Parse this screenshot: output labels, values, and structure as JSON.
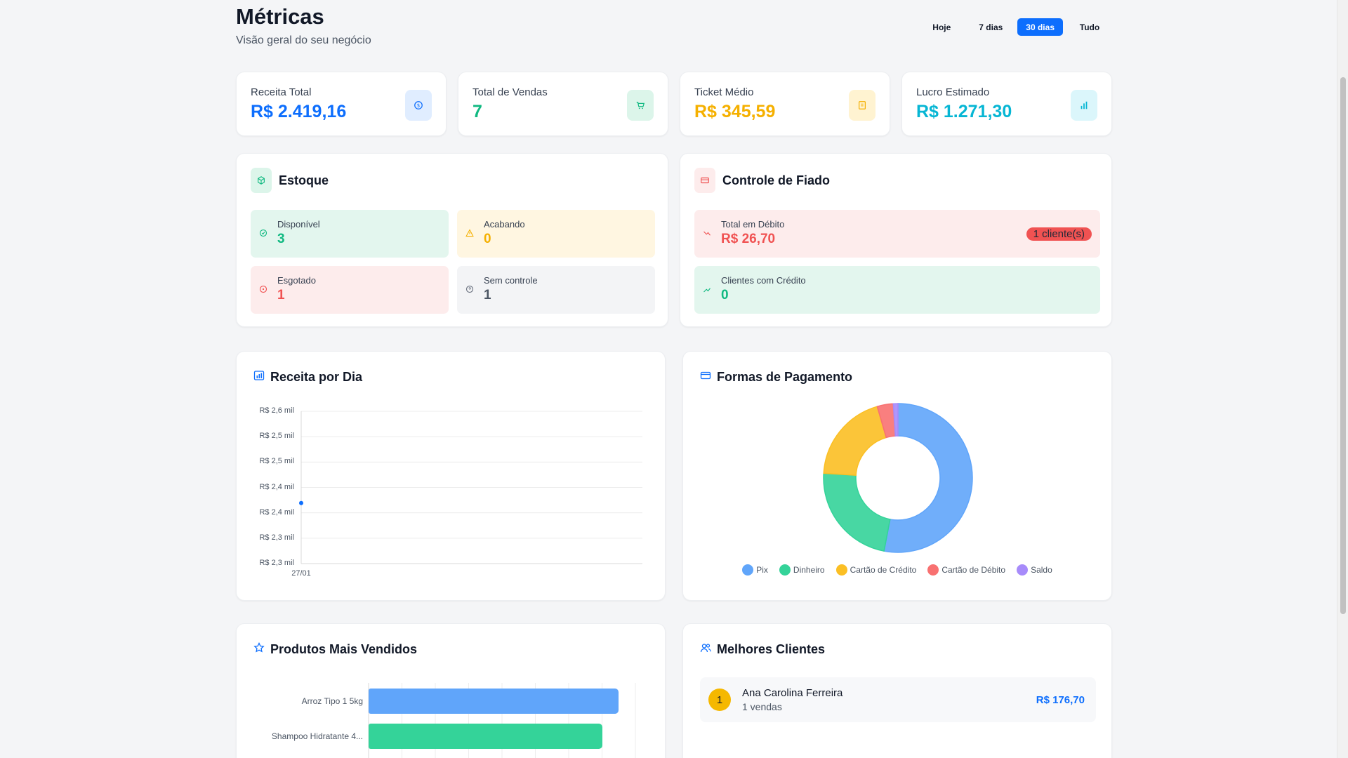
{
  "header": {
    "title": "Métricas",
    "subtitle": "Visão geral do seu negócio",
    "periods": [
      "Hoje",
      "7 dias",
      "30 dias",
      "Tudo"
    ],
    "active_period": "30 dias"
  },
  "kpis": [
    {
      "label": "Receita Total",
      "value": "R$ 2.419,16",
      "color": "#0d6efd",
      "icon": "dollar-icon"
    },
    {
      "label": "Total de Vendas",
      "value": "7",
      "color": "#10b981",
      "icon": "cart-icon"
    },
    {
      "label": "Ticket Médio",
      "value": "R$ 345,59",
      "color": "#f5b000",
      "icon": "receipt-icon"
    },
    {
      "label": "Lucro Estimado",
      "value": "R$ 1.271,30",
      "color": "#06b6d4",
      "icon": "bar-chart-icon"
    }
  ],
  "stock": {
    "title": "Estoque",
    "available": {
      "label": "Disponível",
      "value": "3"
    },
    "low": {
      "label": "Acabando",
      "value": "0"
    },
    "out": {
      "label": "Esgotado",
      "value": "1"
    },
    "untracked": {
      "label": "Sem controle",
      "value": "1"
    }
  },
  "credit": {
    "title": "Controle de Fiado",
    "debt": {
      "label": "Total em Débito",
      "value": "R$ 26,70",
      "badge": "1 cliente(s)"
    },
    "credit_clients": {
      "label": "Clientes com Crédito",
      "value": "0"
    }
  },
  "revenue_chart": {
    "title": "Receita por Dia",
    "chart_data": {
      "type": "line",
      "x": [
        "27/01"
      ],
      "y": [
        2419.16
      ],
      "ytick_labels": [
        "R$ 2,6 mil",
        "R$ 2,5 mil",
        "R$ 2,5 mil",
        "R$ 2,4 mil",
        "R$ 2,4 mil",
        "R$ 2,3 mil",
        "R$ 2,3 mil"
      ],
      "ylim": [
        2300,
        2600
      ],
      "grid": true
    }
  },
  "payment_chart": {
    "title": "Formas de Pagamento",
    "chart_data": {
      "type": "pie",
      "categories": [
        "Pix",
        "Dinheiro",
        "Cartão de Crédito",
        "Cartão de Débito",
        "Saldo"
      ],
      "values": [
        53,
        23,
        19.5,
        3.5,
        1
      ],
      "colors": [
        "#60a5fa",
        "#34d399",
        "#fbbf24",
        "#f87171",
        "#a78bfa"
      ],
      "legend": "bottom"
    }
  },
  "top_products": {
    "title": "Produtos Mais Vendidos",
    "chart_data": {
      "type": "bar",
      "orientation": "horizontal",
      "categories": [
        "Arroz Tipo 1 5kg",
        "Shampoo Hidratante 4..."
      ],
      "values": [
        7.5,
        7.0
      ],
      "xlim": [
        0,
        8
      ],
      "colors": [
        "#60a5fa",
        "#34d399"
      ]
    }
  },
  "top_clients": {
    "title": "Melhores Clientes",
    "items": [
      {
        "rank": "1",
        "name": "Ana Carolina Ferreira",
        "sales": "1 vendas",
        "total": "R$ 176,70"
      }
    ]
  }
}
